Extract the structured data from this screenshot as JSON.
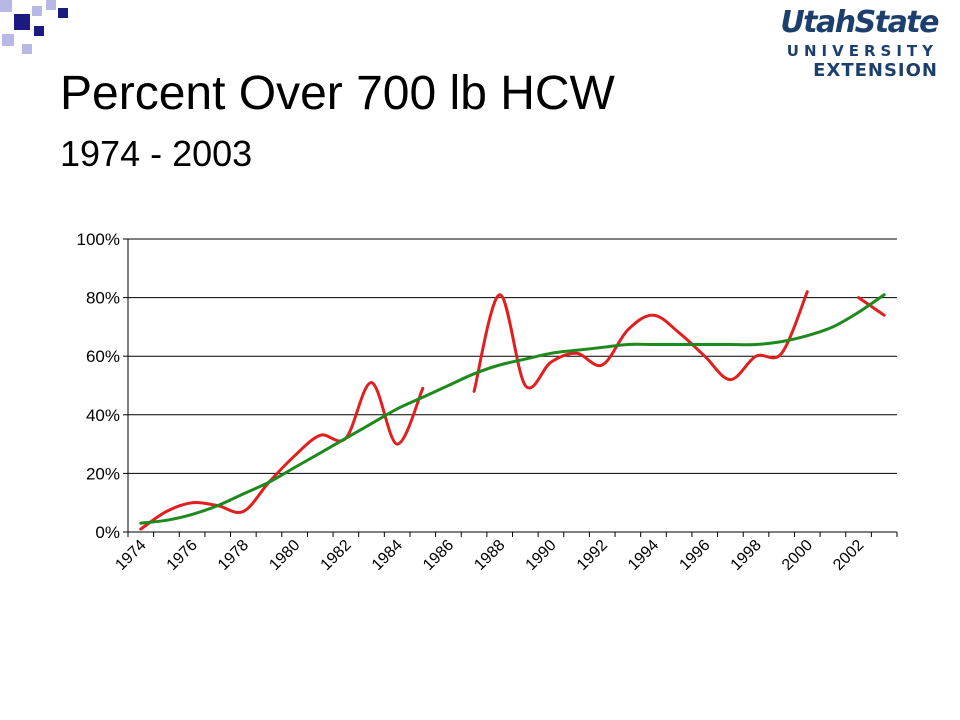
{
  "slide": {
    "title": "Percent Over 700 lb HCW",
    "subtitle": "1974 - 2003",
    "accent_color": "#1a1a80",
    "accent_light": "#b8b8e6"
  },
  "logo": {
    "line1": "UtahState",
    "line2": "UNIVERSITY",
    "line3": "EXTENSION",
    "color": "#1c3f6e"
  },
  "chart_data": {
    "type": "line",
    "x": [
      1974,
      1975,
      1976,
      1977,
      1978,
      1979,
      1980,
      1981,
      1982,
      1983,
      1984,
      1985,
      1986,
      1987,
      1988,
      1989,
      1990,
      1991,
      1992,
      1993,
      1994,
      1995,
      1996,
      1997,
      1998,
      1999,
      2000,
      2001,
      2002,
      2003
    ],
    "series": [
      {
        "color": "#e02020",
        "values": [
          1,
          7,
          10,
          9,
          7,
          17,
          26,
          33,
          32,
          51,
          30,
          49,
          null,
          48,
          81,
          50,
          58,
          61,
          57,
          69,
          74,
          68,
          60,
          52,
          60,
          61,
          82,
          null,
          80,
          74
        ]
      },
      {
        "color": "#1e8a1e",
        "values": [
          3,
          4,
          6,
          9,
          13,
          17,
          22,
          27,
          32,
          37,
          42,
          46,
          50,
          54,
          57,
          59,
          61,
          62,
          63,
          64,
          64,
          64,
          64,
          64,
          64,
          65,
          67,
          70,
          75,
          81
        ]
      }
    ],
    "y_ticks": [
      "0%",
      "20%",
      "40%",
      "60%",
      "80%",
      "100%"
    ],
    "x_tick_labels": [
      "1974",
      "1976",
      "1978",
      "1980",
      "1982",
      "1984",
      "1986",
      "1988",
      "1990",
      "1992",
      "1994",
      "1996",
      "1998",
      "2000",
      "2002"
    ],
    "ylim": [
      0,
      100
    ],
    "grid": "horizontal"
  }
}
